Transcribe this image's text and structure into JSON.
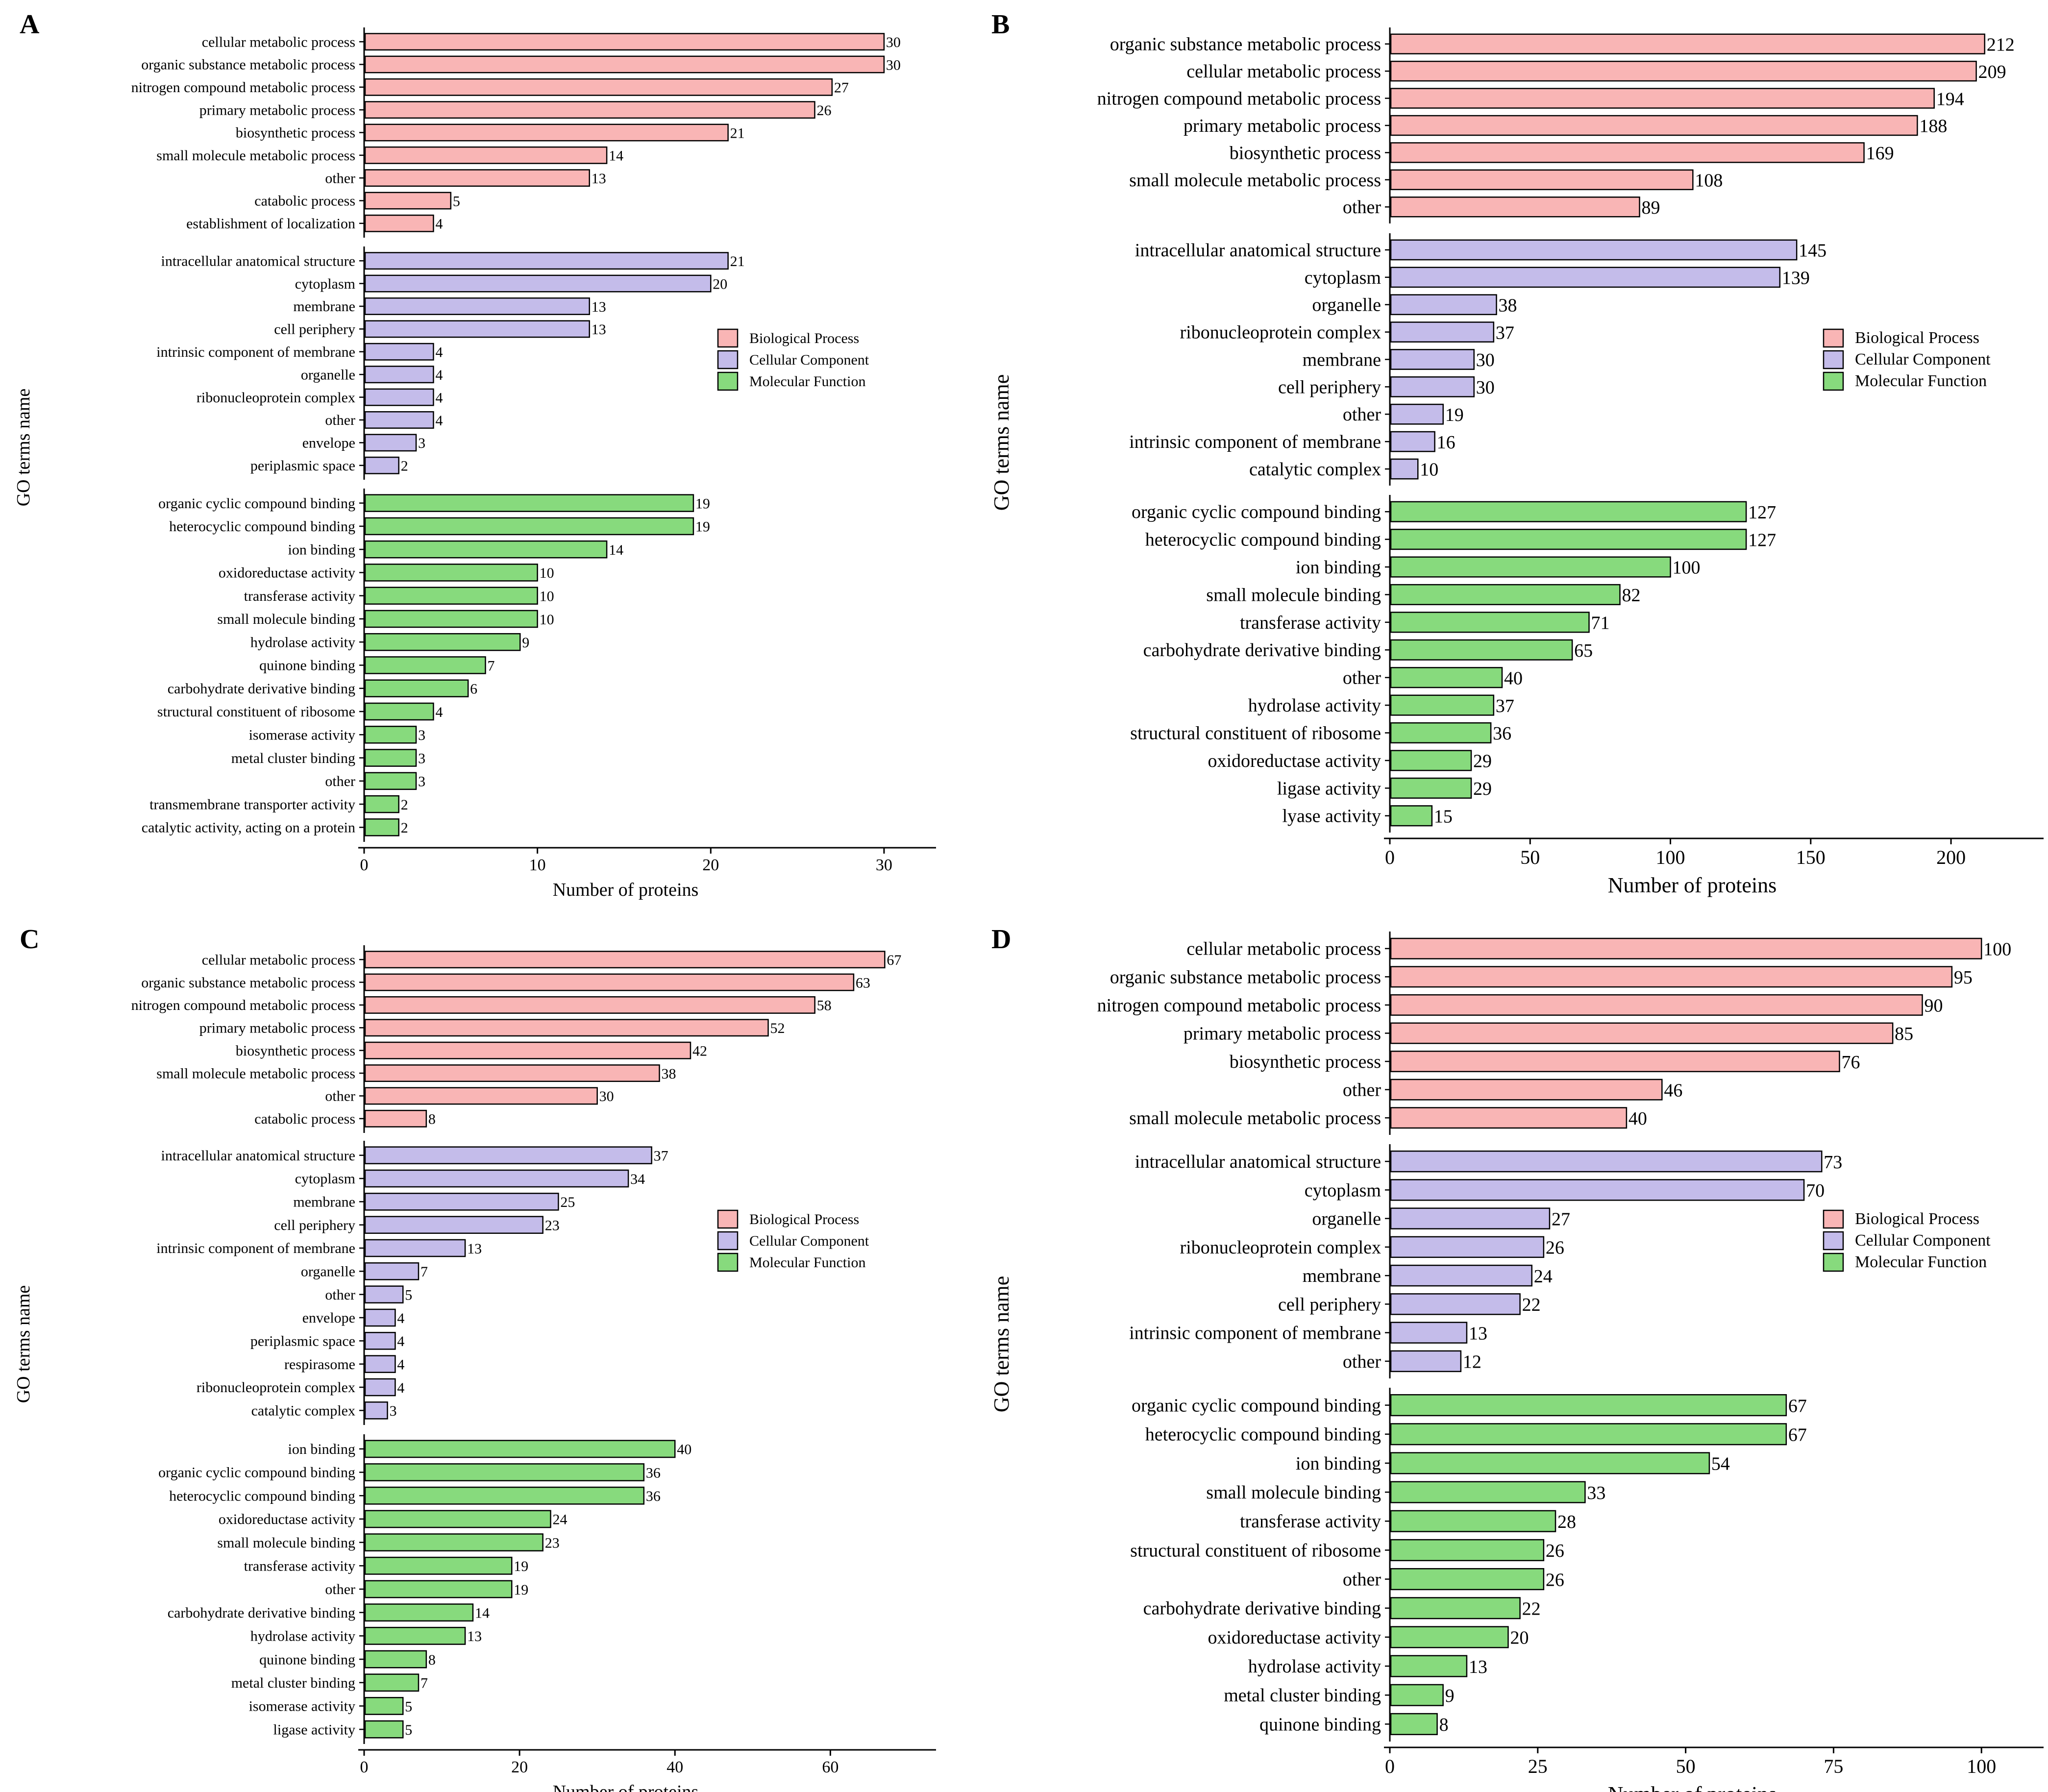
{
  "colors": {
    "biological_process": "#F9B5B5",
    "cellular_component": "#C4BCEA",
    "molecular_function": "#87DA7D"
  },
  "legend": {
    "biological_process": "Biological Process",
    "cellular_component": "Cellular Component",
    "molecular_function": "Molecular Function"
  },
  "chart_data": [
    {
      "panel": "A",
      "type": "bar",
      "orientation": "horizontal",
      "xlabel": "Number of proteins",
      "ylabel": "GO terms name",
      "xlim": [
        0,
        33
      ],
      "xticks": [
        0,
        10,
        20,
        30
      ],
      "groups": [
        {
          "key": "biological_process",
          "items": [
            {
              "label": "cellular metabolic process",
              "value": 30
            },
            {
              "label": "organic substance metabolic process",
              "value": 30
            },
            {
              "label": "nitrogen compound metabolic process",
              "value": 27
            },
            {
              "label": "primary metabolic process",
              "value": 26
            },
            {
              "label": "biosynthetic process",
              "value": 21
            },
            {
              "label": "small molecule metabolic process",
              "value": 14
            },
            {
              "label": "other",
              "value": 13
            },
            {
              "label": "catabolic process",
              "value": 5
            },
            {
              "label": "establishment of localization",
              "value": 4
            }
          ]
        },
        {
          "key": "cellular_component",
          "items": [
            {
              "label": "intracellular anatomical structure",
              "value": 21
            },
            {
              "label": "cytoplasm",
              "value": 20
            },
            {
              "label": "membrane",
              "value": 13
            },
            {
              "label": "cell periphery",
              "value": 13
            },
            {
              "label": "intrinsic component of membrane",
              "value": 4
            },
            {
              "label": "organelle",
              "value": 4
            },
            {
              "label": "ribonucleoprotein complex",
              "value": 4
            },
            {
              "label": "other",
              "value": 4
            },
            {
              "label": "envelope",
              "value": 3
            },
            {
              "label": "periplasmic space",
              "value": 2
            }
          ]
        },
        {
          "key": "molecular_function",
          "items": [
            {
              "label": "organic cyclic compound binding",
              "value": 19
            },
            {
              "label": "heterocyclic compound binding",
              "value": 19
            },
            {
              "label": "ion binding",
              "value": 14
            },
            {
              "label": "oxidoreductase activity",
              "value": 10
            },
            {
              "label": "transferase activity",
              "value": 10
            },
            {
              "label": "small molecule binding",
              "value": 10
            },
            {
              "label": "hydrolase activity",
              "value": 9
            },
            {
              "label": "quinone binding",
              "value": 7
            },
            {
              "label": "carbohydrate derivative binding",
              "value": 6
            },
            {
              "label": "structural constituent of ribosome",
              "value": 4
            },
            {
              "label": "isomerase activity",
              "value": 3
            },
            {
              "label": "metal cluster binding",
              "value": 3
            },
            {
              "label": "other",
              "value": 3
            },
            {
              "label": "transmembrane transporter activity",
              "value": 2
            },
            {
              "label": "catalytic activity, acting on a protein",
              "value": 2
            }
          ]
        }
      ]
    },
    {
      "panel": "B",
      "type": "bar",
      "orientation": "horizontal",
      "xlabel": "Number of proteins",
      "ylabel": "GO terms name",
      "xlim": [
        0,
        233
      ],
      "xticks": [
        0,
        50,
        100,
        150,
        200
      ],
      "groups": [
        {
          "key": "biological_process",
          "items": [
            {
              "label": "organic substance metabolic process",
              "value": 212
            },
            {
              "label": "cellular metabolic process",
              "value": 209
            },
            {
              "label": "nitrogen compound metabolic process",
              "value": 194
            },
            {
              "label": "primary metabolic process",
              "value": 188
            },
            {
              "label": "biosynthetic process",
              "value": 169
            },
            {
              "label": "small molecule metabolic process",
              "value": 108
            },
            {
              "label": "other",
              "value": 89
            }
          ]
        },
        {
          "key": "cellular_component",
          "items": [
            {
              "label": "intracellular anatomical structure",
              "value": 145
            },
            {
              "label": "cytoplasm",
              "value": 139
            },
            {
              "label": "organelle",
              "value": 38
            },
            {
              "label": "ribonucleoprotein complex",
              "value": 37
            },
            {
              "label": "membrane",
              "value": 30
            },
            {
              "label": "cell periphery",
              "value": 30
            },
            {
              "label": "other",
              "value": 19
            },
            {
              "label": "intrinsic component of membrane",
              "value": 16
            },
            {
              "label": "catalytic complex",
              "value": 10
            }
          ]
        },
        {
          "key": "molecular_function",
          "items": [
            {
              "label": "organic cyclic compound binding",
              "value": 127
            },
            {
              "label": "heterocyclic compound binding",
              "value": 127
            },
            {
              "label": "ion binding",
              "value": 100
            },
            {
              "label": "small molecule binding",
              "value": 82
            },
            {
              "label": "transferase activity",
              "value": 71
            },
            {
              "label": "carbohydrate derivative binding",
              "value": 65
            },
            {
              "label": "other",
              "value": 40
            },
            {
              "label": "hydrolase activity",
              "value": 37
            },
            {
              "label": "structural constituent of ribosome",
              "value": 36
            },
            {
              "label": "oxidoreductase activity",
              "value": 29
            },
            {
              "label": "ligase activity",
              "value": 29
            },
            {
              "label": "lyase activity",
              "value": 15
            }
          ]
        }
      ]
    },
    {
      "panel": "C",
      "type": "bar",
      "orientation": "horizontal",
      "xlabel": "Number of proteins",
      "ylabel": "GO terms name",
      "xlim": [
        0,
        73.6
      ],
      "xticks": [
        0,
        20,
        40,
        60
      ],
      "groups": [
        {
          "key": "biological_process",
          "items": [
            {
              "label": "cellular metabolic process",
              "value": 67
            },
            {
              "label": "organic substance metabolic process",
              "value": 63
            },
            {
              "label": "nitrogen compound metabolic process",
              "value": 58
            },
            {
              "label": "primary metabolic process",
              "value": 52
            },
            {
              "label": "biosynthetic process",
              "value": 42
            },
            {
              "label": "small molecule metabolic process",
              "value": 38
            },
            {
              "label": "other",
              "value": 30
            },
            {
              "label": "catabolic process",
              "value": 8
            }
          ]
        },
        {
          "key": "cellular_component",
          "items": [
            {
              "label": "intracellular anatomical structure",
              "value": 37
            },
            {
              "label": "cytoplasm",
              "value": 34
            },
            {
              "label": "membrane",
              "value": 25
            },
            {
              "label": "cell periphery",
              "value": 23
            },
            {
              "label": "intrinsic component of membrane",
              "value": 13
            },
            {
              "label": "organelle",
              "value": 7
            },
            {
              "label": "other",
              "value": 5
            },
            {
              "label": "envelope",
              "value": 4
            },
            {
              "label": "periplasmic space",
              "value": 4
            },
            {
              "label": "respirasome",
              "value": 4
            },
            {
              "label": "ribonucleoprotein complex",
              "value": 4
            },
            {
              "label": "catalytic complex",
              "value": 3
            }
          ]
        },
        {
          "key": "molecular_function",
          "items": [
            {
              "label": "ion binding",
              "value": 40
            },
            {
              "label": "organic cyclic compound binding",
              "value": 36
            },
            {
              "label": "heterocyclic compound binding",
              "value": 36
            },
            {
              "label": "oxidoreductase activity",
              "value": 24
            },
            {
              "label": "small molecule binding",
              "value": 23
            },
            {
              "label": "transferase activity",
              "value": 19
            },
            {
              "label": "other",
              "value": 19
            },
            {
              "label": "carbohydrate derivative binding",
              "value": 14
            },
            {
              "label": "hydrolase activity",
              "value": 13
            },
            {
              "label": "quinone binding",
              "value": 8
            },
            {
              "label": "metal cluster binding",
              "value": 7
            },
            {
              "label": "isomerase activity",
              "value": 5
            },
            {
              "label": "ligase activity",
              "value": 5
            }
          ]
        }
      ]
    },
    {
      "panel": "D",
      "type": "bar",
      "orientation": "horizontal",
      "xlabel": "Number of proteins",
      "ylabel": "GO terms name",
      "xlim": [
        0,
        110.5
      ],
      "xticks": [
        0,
        25,
        50,
        75,
        100
      ],
      "groups": [
        {
          "key": "biological_process",
          "items": [
            {
              "label": "cellular metabolic process",
              "value": 100
            },
            {
              "label": "organic substance metabolic process",
              "value": 95
            },
            {
              "label": "nitrogen compound metabolic process",
              "value": 90
            },
            {
              "label": "primary metabolic process",
              "value": 85
            },
            {
              "label": "biosynthetic process",
              "value": 76
            },
            {
              "label": "other",
              "value": 46
            },
            {
              "label": "small molecule metabolic process",
              "value": 40
            }
          ]
        },
        {
          "key": "cellular_component",
          "items": [
            {
              "label": "intracellular anatomical structure",
              "value": 73
            },
            {
              "label": "cytoplasm",
              "value": 70
            },
            {
              "label": "organelle",
              "value": 27
            },
            {
              "label": "ribonucleoprotein complex",
              "value": 26
            },
            {
              "label": "membrane",
              "value": 24
            },
            {
              "label": "cell periphery",
              "value": 22
            },
            {
              "label": "intrinsic component of membrane",
              "value": 13
            },
            {
              "label": "other",
              "value": 12
            }
          ]
        },
        {
          "key": "molecular_function",
          "items": [
            {
              "label": "organic cyclic compound binding",
              "value": 67
            },
            {
              "label": "heterocyclic compound binding",
              "value": 67
            },
            {
              "label": "ion binding",
              "value": 54
            },
            {
              "label": "small molecule binding",
              "value": 33
            },
            {
              "label": "transferase activity",
              "value": 28
            },
            {
              "label": "structural constituent of ribosome",
              "value": 26
            },
            {
              "label": "other",
              "value": 26
            },
            {
              "label": "carbohydrate derivative binding",
              "value": 22
            },
            {
              "label": "oxidoreductase activity",
              "value": 20
            },
            {
              "label": "hydrolase activity",
              "value": 13
            },
            {
              "label": "metal cluster binding",
              "value": 9
            },
            {
              "label": "quinone binding",
              "value": 8
            }
          ]
        }
      ]
    }
  ]
}
